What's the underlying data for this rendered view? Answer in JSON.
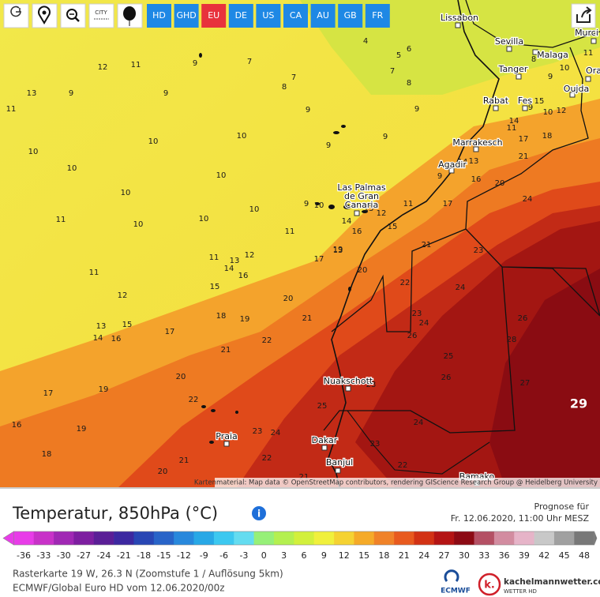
{
  "toolbar": {
    "city_button": "CITY",
    "regions": [
      "HD",
      "GHD",
      "EU",
      "DE",
      "US",
      "CA",
      "AU",
      "GB",
      "FR"
    ],
    "active_region": "EU"
  },
  "map": {
    "cities": [
      "Lissabon",
      "Sevilla",
      "Malaga",
      "Murci",
      "Tanger",
      "Ora",
      "Oujda",
      "Rabat",
      "Fes",
      "Marrakesch",
      "Agadir",
      "Nuakschott",
      "Praia",
      "Dakar",
      "Banjul",
      "Bamako"
    ],
    "las_palmas": [
      "Las Palmas",
      "de Gran",
      "Canaria"
    ],
    "isotherm_labels": [
      13,
      11,
      12,
      9,
      7,
      9,
      9,
      8,
      7,
      4,
      5,
      6,
      7,
      8,
      9,
      9,
      11,
      10,
      10,
      10,
      10,
      9,
      9,
      10,
      10,
      11,
      10,
      10,
      10,
      9,
      11,
      11,
      11,
      13,
      12,
      11,
      14,
      16,
      15,
      12,
      17,
      19,
      20,
      20,
      13,
      15,
      14,
      16,
      17,
      18,
      19,
      21,
      21,
      22,
      17,
      19,
      20,
      22,
      16,
      19,
      23,
      24,
      18,
      21,
      20,
      21,
      22,
      23,
      22,
      24,
      26,
      23,
      25,
      24,
      23,
      24,
      26,
      25,
      26,
      27,
      28,
      21,
      23,
      22,
      24,
      17,
      16,
      20,
      14,
      12,
      10,
      11,
      15,
      18,
      17,
      21,
      14,
      13,
      9,
      16,
      13,
      14,
      12,
      15,
      13,
      10,
      11,
      9,
      8,
      10,
      9
    ],
    "max_label": 29,
    "attribution": "Kartenmaterial: Map data © OpenStreetMap contributors, rendering GIScience Research Group @ Heidelberg University"
  },
  "legend": {
    "title": "Temperatur, 850hPa (°C)",
    "forecast_label": "Prognose für",
    "forecast_time": "Fr. 12.06.2020, 11:00 Uhr MESZ",
    "ticks": [
      -36,
      -33,
      -30,
      -27,
      -24,
      -21,
      -18,
      -15,
      -12,
      -9,
      -6,
      -3,
      0,
      3,
      6,
      9,
      12,
      15,
      18,
      21,
      24,
      27,
      30,
      33,
      36,
      39,
      42,
      45,
      48
    ],
    "colors": [
      "#e83ce8",
      "#c832c8",
      "#a028b4",
      "#7d1ea0",
      "#5a1e96",
      "#3c28a0",
      "#2846b4",
      "#2864c8",
      "#2888dc",
      "#28a8e6",
      "#3cc8f0",
      "#64dcf0",
      "#96f078",
      "#b4f050",
      "#d2f03c",
      "#f0f03c",
      "#f5d232",
      "#f5aa28",
      "#f08228",
      "#e85a1e",
      "#d23214",
      "#b41414",
      "#8c0a14",
      "#b45064",
      "#d28ca0",
      "#e6b4c8",
      "#c8c8c8",
      "#a0a0a0",
      "#787878"
    ]
  },
  "footer": {
    "location": "Rasterkarte 19 W, 26.3 N (Zoomstufe 1 / Auflösung 5km)",
    "model": "ECMWF/Global Euro HD vom 12.06.2020/00z",
    "ecmwf": "ECMWF",
    "brand_logo": "k.",
    "brand": "kachelmannwetter.com",
    "brand_sub": "WETTER HD"
  }
}
